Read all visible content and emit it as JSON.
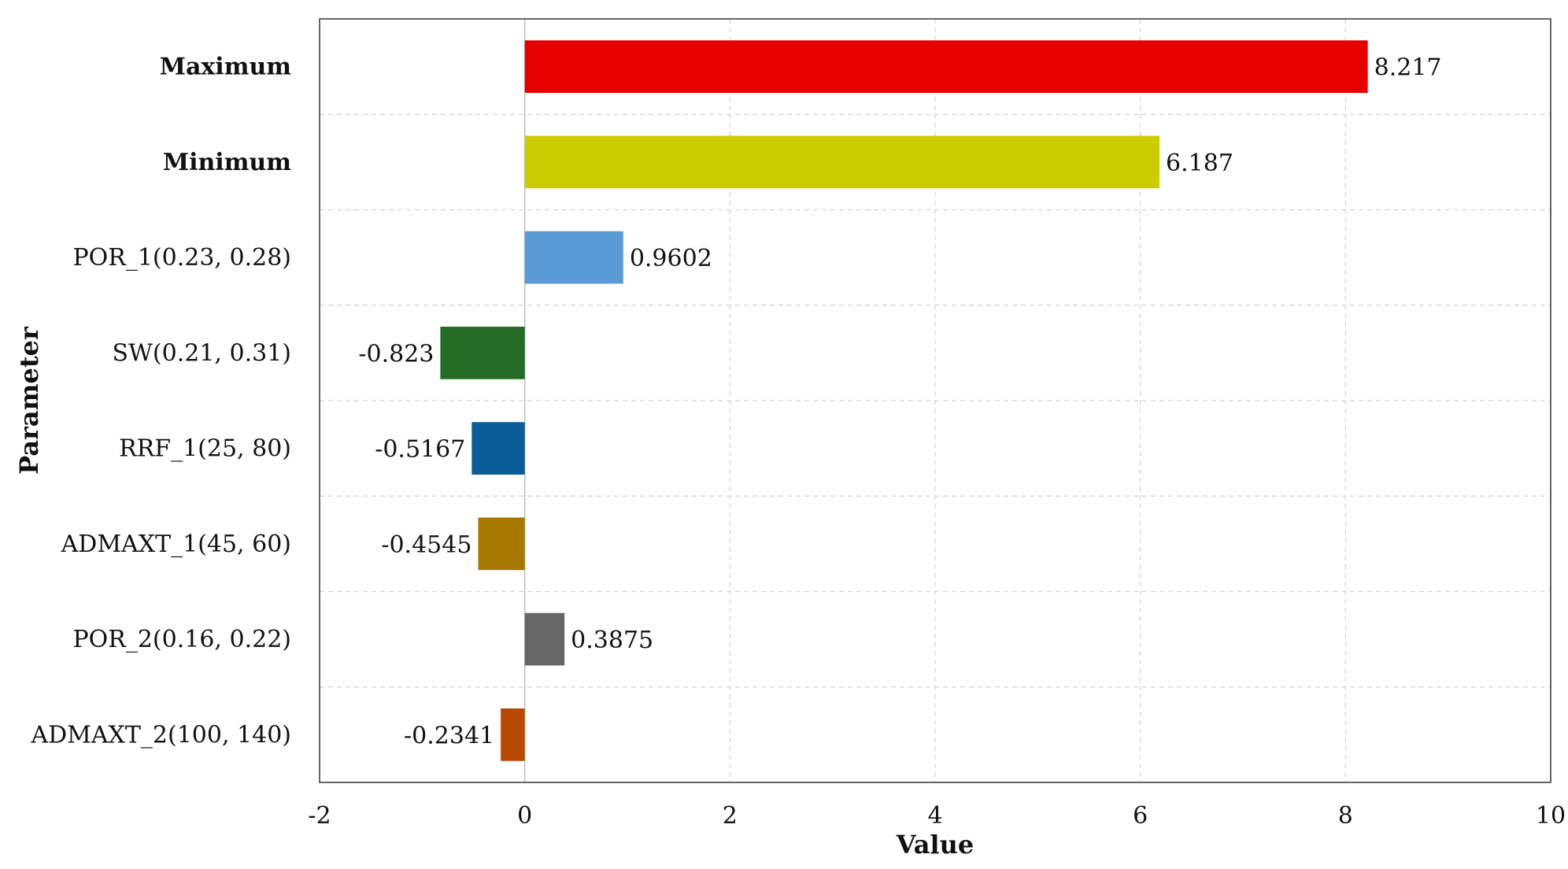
{
  "chart_data": {
    "type": "bar",
    "orientation": "horizontal",
    "title": "",
    "xlabel": "Value",
    "ylabel": "Parameter",
    "xlim": [
      -2,
      10
    ],
    "xticks": [
      -2,
      0,
      2,
      4,
      6,
      8,
      10
    ],
    "xtick_labels": [
      "-2",
      "0",
      "2",
      "4",
      "6",
      "8",
      "10"
    ],
    "grid": true,
    "legend": "none",
    "categories": [
      "Maximum",
      "Minimum",
      "POR_1(0.23, 0.28)",
      "SW(0.21, 0.31)",
      "RRF_1(25, 80)",
      "ADMAXT_1(45, 60)",
      "POR_2(0.16, 0.22)",
      "ADMAXT_2(100, 140)"
    ],
    "values": [
      8.217,
      6.187,
      0.9602,
      -0.823,
      -0.5167,
      -0.4545,
      0.3875,
      -0.2341
    ],
    "value_labels": [
      "8.217",
      "6.187",
      "0.9602",
      "-0.823",
      "-0.5167",
      "-0.4545",
      "0.3875",
      "-0.2341"
    ],
    "colors": [
      "#e60000",
      "#cccc00",
      "#5b9bd5",
      "#256b25",
      "#0a5c99",
      "#a67800",
      "#666666",
      "#b84a00"
    ]
  }
}
